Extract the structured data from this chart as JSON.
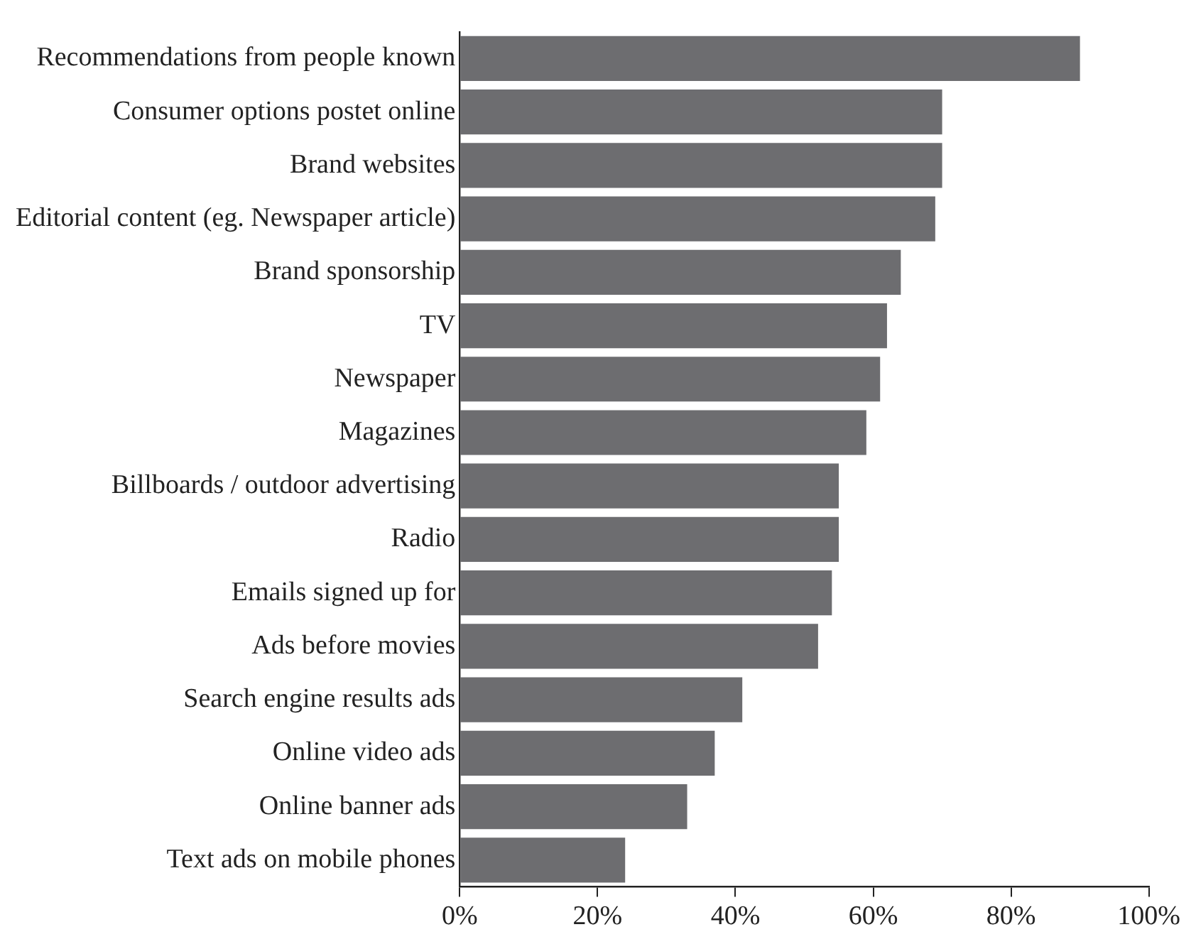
{
  "chart_data": {
    "type": "bar",
    "orientation": "horizontal",
    "categories": [
      "Recommendations from people known",
      "Consumer options postet online",
      "Brand websites",
      "Editorial content (eg. Newspaper article)",
      "Brand sponsorship",
      "TV",
      "Newspaper",
      "Magazines",
      "Billboards / outdoor advertising",
      "Radio",
      "Emails signed up for",
      "Ads before movies",
      "Search engine results ads",
      "Online video ads",
      "Online banner ads",
      "Text ads on mobile phones"
    ],
    "values": [
      90,
      70,
      70,
      69,
      64,
      62,
      61,
      59,
      55,
      55,
      54,
      52,
      41,
      37,
      33,
      24
    ],
    "color": "#6d6d70",
    "xlim": [
      0,
      100
    ],
    "xticks": [
      {
        "value": 0,
        "label": "0%"
      },
      {
        "value": 20,
        "label": "20%"
      },
      {
        "value": 40,
        "label": "40%"
      },
      {
        "value": 60,
        "label": "60%"
      },
      {
        "value": 80,
        "label": "80%"
      },
      {
        "value": 100,
        "label": "100%"
      }
    ],
    "grid": false,
    "legend": false
  }
}
